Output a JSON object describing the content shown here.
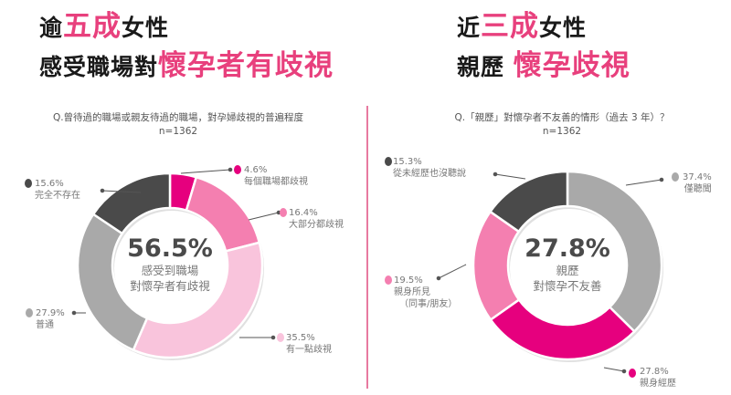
{
  "left": {
    "headline_line1": {
      "prefix": "逾",
      "highlight": "五成",
      "suffix": "女性"
    },
    "headline_line2": {
      "prefix": "感受職場對",
      "highlight": "懷孕者有歧視"
    },
    "question": "Q.曾待過的職場或親友待過的職場，對孕婦歧視的普遍程度",
    "sample": "n=1362",
    "center_value": "56.5%",
    "center_line1": "感受到職場",
    "center_line2": "對懷孕者有歧視",
    "labels": [
      {
        "pct": "4.6%",
        "text": "每個職場都歧視"
      },
      {
        "pct": "16.4%",
        "text": "大部分都歧視"
      },
      {
        "pct": "35.5%",
        "text": "有一點歧視"
      },
      {
        "pct": "27.9%",
        "text": "普通"
      },
      {
        "pct": "15.6%",
        "text": "完全不存在"
      }
    ]
  },
  "right": {
    "headline_line1": {
      "prefix": "近",
      "highlight": "三成",
      "suffix": "女性"
    },
    "headline_line2": {
      "prefix": "親歷",
      "highlight": "懷孕歧視"
    },
    "question": "Q.「親歷」對懷孕者不友善的情形（過去  3 年）？",
    "sample": "n=1362",
    "center_value": "27.8%",
    "center_line1": "親歷",
    "center_line2": "對懷孕不友善",
    "labels": [
      {
        "pct": "37.4%",
        "text": "僅聽聞"
      },
      {
        "pct": "27.8%",
        "text": "親身經歷"
      },
      {
        "pct": "19.5%",
        "text": "親身所見",
        "text2": "（同事/朋友）"
      },
      {
        "pct": "15.3%",
        "text": "從未經歷也沒聽說"
      }
    ]
  },
  "colors": {
    "magenta": "#e6007e",
    "pink": "#f47fb0",
    "light_pink": "#f9c4dc",
    "light_gray": "#a9a9a9",
    "dark_gray": "#4a4a4a",
    "headline_pink": "#e8407d",
    "divider": "#e87aa0"
  },
  "chart_data": [
    {
      "type": "pie",
      "subtype": "donut",
      "title": "Q.曾待過的職場或親友待過的職場，對孕婦歧視的普遍程度",
      "subtitle": "n=1362",
      "categories": [
        "每個職場都歧視",
        "大部分都歧視",
        "有一點歧視",
        "普通",
        "完全不存在"
      ],
      "values": [
        4.6,
        16.4,
        35.5,
        27.9,
        15.6
      ],
      "colors": [
        "#e6007e",
        "#f47fb0",
        "#f9c4dc",
        "#a9a9a9",
        "#4a4a4a"
      ],
      "center_annotation": "56.5% 感受到職場對懷孕者有歧視",
      "start_angle": "12 o'clock, clockwise",
      "legend": "callout labels"
    },
    {
      "type": "pie",
      "subtype": "donut",
      "title": "Q.「親歷」對懷孕者不友善的情形（過去 3 年）？",
      "subtitle": "n=1362",
      "categories": [
        "僅聽聞",
        "親身經歷",
        "親身所見（同事/朋友）",
        "從未經歷也沒聽說"
      ],
      "values": [
        37.4,
        27.8,
        19.5,
        15.3
      ],
      "colors": [
        "#a9a9a9",
        "#e6007e",
        "#f47fb0",
        "#4a4a4a"
      ],
      "center_annotation": "27.8% 親歷對懷孕不友善",
      "start_angle": "12 o'clock, clockwise",
      "legend": "callout labels"
    }
  ]
}
